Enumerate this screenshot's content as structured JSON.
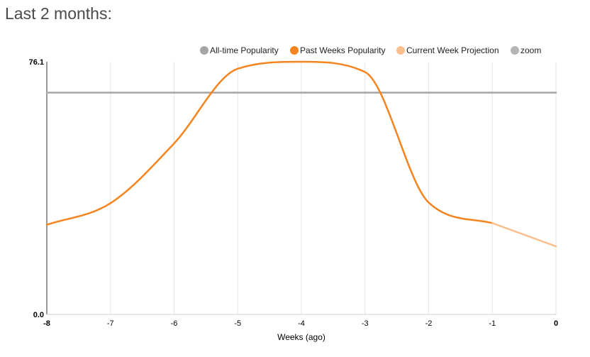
{
  "page": {
    "heading": "Last 2 months:"
  },
  "chart_data": {
    "type": "line",
    "xlabel": "Weeks (ago)",
    "ylabel": "",
    "ylim": [
      0,
      76.1
    ],
    "xlim": [
      -8,
      0
    ],
    "y_tick_labels": [
      "76.1",
      "0.0"
    ],
    "x_tick_labels": [
      "-8",
      "-7",
      "-6",
      "-5",
      "-4",
      "-3",
      "-2",
      "-1",
      "0"
    ],
    "grid": "vertical",
    "legend_position": "top-right",
    "legend": [
      {
        "name": "All-time Popularity",
        "color": "#a5a5a5"
      },
      {
        "name": "Past Weeks Popularity",
        "color": "#f5841f"
      },
      {
        "name": "Current Week Projection",
        "color": "#f9c08e"
      },
      {
        "name": "zoom",
        "color": "#b5b5b5"
      }
    ],
    "series": [
      {
        "name": "All-time Popularity",
        "color": "#a5a5a5",
        "x": [
          -8,
          0
        ],
        "y": [
          66.8,
          66.8
        ]
      },
      {
        "name": "Past Weeks Popularity",
        "color": "#f5841f",
        "x": [
          -8,
          -7,
          -6,
          -5,
          -4,
          -3,
          -2,
          -1
        ],
        "y": [
          27.0,
          33.5,
          51.5,
          74.0,
          76.1,
          73.0,
          33.7,
          27.5
        ]
      },
      {
        "name": "Current Week Projection",
        "color": "#f9c08e",
        "x": [
          -1,
          0
        ],
        "y": [
          27.5,
          20.5
        ]
      }
    ]
  }
}
